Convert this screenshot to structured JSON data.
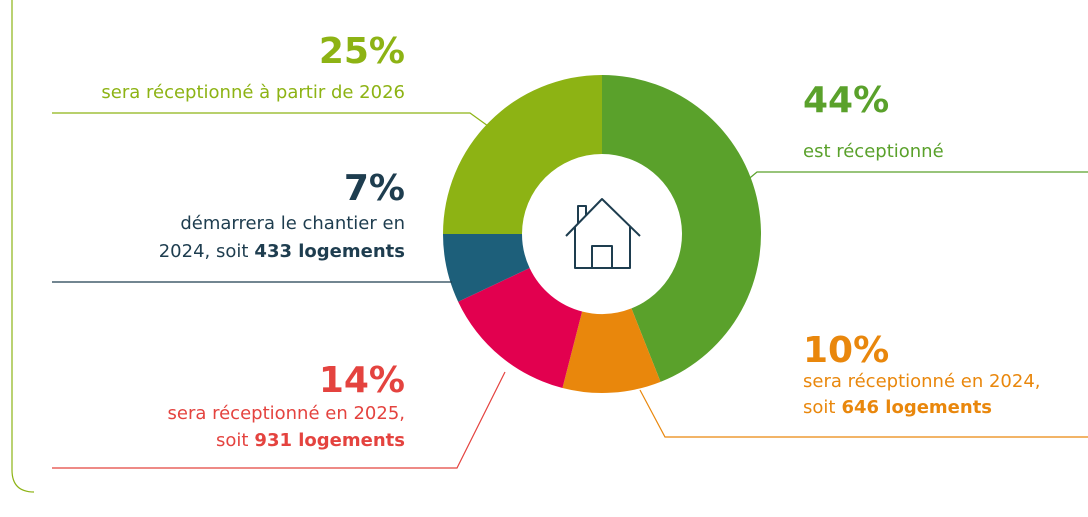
{
  "chart_data": {
    "type": "donut",
    "values": [
      44,
      10,
      14,
      7,
      25
    ],
    "value_labels": [
      "44%",
      "10%",
      "14%",
      "7%",
      "25%"
    ],
    "colors": [
      "#5aa12b",
      "#e9870c",
      "#e2004f",
      "#1d5f7a",
      "#8db314"
    ],
    "label_colors": [
      "#5aa12b",
      "#e9870c",
      "#e4433f",
      "#1e3d4f",
      "#8db314"
    ],
    "descriptions": [
      {
        "lines": [
          "est réceptionné"
        ]
      },
      {
        "lines": [
          "sera réceptionné en 2024,",
          "soit"
        ],
        "bold": "646 logements"
      },
      {
        "lines": [
          "sera réceptionné en 2025,",
          "soit"
        ],
        "bold": "931 logements"
      },
      {
        "lines": [
          "démarrera le chantier en",
          "2024, soit"
        ],
        "bold": "433 logements"
      },
      {
        "lines": [
          "sera réceptionné à partir de 2026"
        ]
      }
    ]
  }
}
